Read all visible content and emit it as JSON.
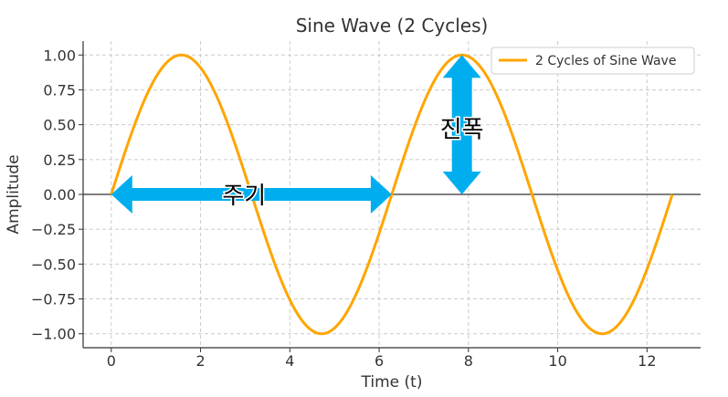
{
  "chart_data": {
    "type": "line",
    "title": "Sine Wave (2 Cycles)",
    "xlabel": "Time (t)",
    "ylabel": "Amplitude",
    "xlim": [
      -0.63,
      13.2
    ],
    "ylim": [
      -1.1,
      1.1
    ],
    "x_ticks": [
      0,
      2,
      4,
      6,
      8,
      10,
      12
    ],
    "x_tick_labels": [
      "0",
      "2",
      "4",
      "6",
      "8",
      "10",
      "12"
    ],
    "y_ticks": [
      1.0,
      0.75,
      0.5,
      0.25,
      0.0,
      -0.25,
      -0.5,
      -0.75,
      -1.0
    ],
    "y_tick_labels": [
      "1.00",
      "0.75",
      "0.50",
      "0.25",
      "0.00",
      "−0.25",
      "−0.50",
      "−0.75",
      "−1.00"
    ],
    "grid": true,
    "legend_position": "top-right",
    "series": [
      {
        "name": "2 Cycles of Sine Wave",
        "function": "sin(t)",
        "x_range": [
          0,
          12.566
        ],
        "color": "#FFA500",
        "points": [
          [
            0,
            0
          ],
          [
            0.785,
            0.707
          ],
          [
            1.571,
            1.0
          ],
          [
            2.356,
            0.707
          ],
          [
            3.142,
            0
          ],
          [
            3.927,
            -0.707
          ],
          [
            4.712,
            -1.0
          ],
          [
            5.498,
            -0.707
          ],
          [
            6.283,
            0
          ],
          [
            7.069,
            0.707
          ],
          [
            7.854,
            1.0
          ],
          [
            8.639,
            0.707
          ],
          [
            9.425,
            0
          ],
          [
            10.21,
            -0.707
          ],
          [
            10.996,
            -1.0
          ],
          [
            11.781,
            -0.707
          ],
          [
            12.566,
            0
          ]
        ]
      }
    ],
    "reference_lines": [
      {
        "y": 0,
        "color": "#333333"
      }
    ],
    "annotations": [
      {
        "label": "주기",
        "type": "double-arrow-horizontal",
        "from": [
          0,
          0
        ],
        "to": [
          6.283,
          0
        ],
        "color": "#00AEEF"
      },
      {
        "label": "진폭",
        "type": "double-arrow-vertical",
        "from": [
          7.854,
          0
        ],
        "to": [
          7.854,
          1.0
        ],
        "color": "#00AEEF"
      }
    ]
  }
}
